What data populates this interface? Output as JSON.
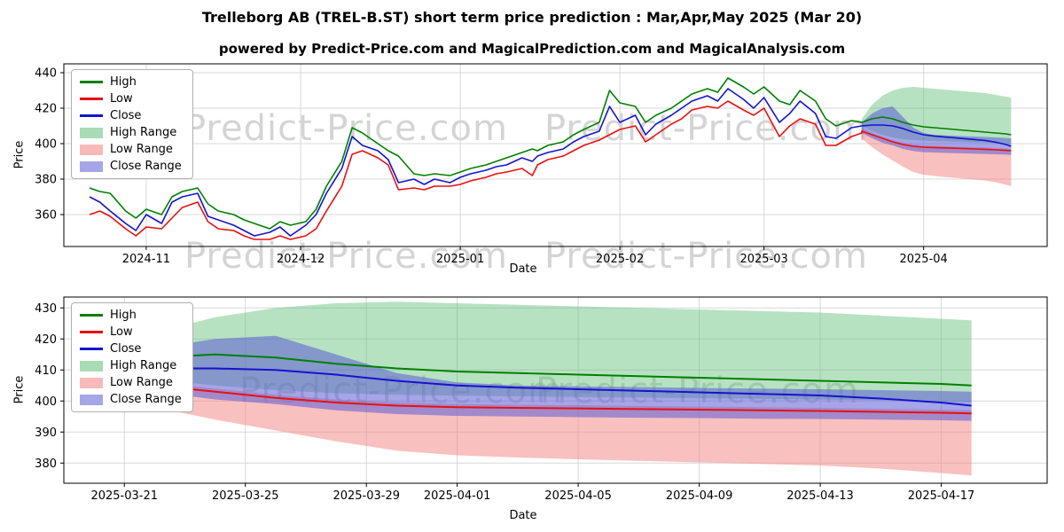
{
  "page": {
    "title": "Trelleborg AB (TREL-B.ST) short term price prediction : Mar,Apr,May 2025 (Mar 20)",
    "subtitle": "powered by Predict-Price.com and MagicalPrediction.com and MagicalAnalysis.com",
    "watermark": "Predict-Price.com"
  },
  "colors": {
    "high": "#008000",
    "low": "#e81010",
    "close": "#1414cc",
    "high_range": "#5fbf77",
    "low_range": "#f2827f",
    "close_range": "#5b5bd6",
    "grid": "#d8d8d8",
    "axis": "#000000"
  },
  "legend": {
    "items": [
      {
        "label": "High",
        "type": "line",
        "color": "high"
      },
      {
        "label": "Low",
        "type": "line",
        "color": "low"
      },
      {
        "label": "Close",
        "type": "line",
        "color": "close"
      },
      {
        "label": "High Range",
        "type": "patch",
        "color": "high_range"
      },
      {
        "label": "Low Range",
        "type": "patch",
        "color": "low_range"
      },
      {
        "label": "Close Range",
        "type": "patch",
        "color": "close_range"
      }
    ]
  },
  "chart_data": [
    {
      "type": "line",
      "name": "history-and-prediction",
      "title": "",
      "xlabel": "Date",
      "ylabel": "Price",
      "ylim": [
        342,
        445
      ],
      "yticks": [
        360,
        380,
        400,
        420,
        440
      ],
      "xlim": [
        -5,
        186
      ],
      "xticks": [
        {
          "pos": 11,
          "label": "2024-11"
        },
        {
          "pos": 41,
          "label": "2024-12"
        },
        {
          "pos": 72,
          "label": "2025-01"
        },
        {
          "pos": 103,
          "label": "2025-02"
        },
        {
          "pos": 131,
          "label": "2025-03"
        },
        {
          "pos": 162,
          "label": "2025-04"
        }
      ],
      "all_x": [
        0,
        2,
        4,
        7,
        9,
        11,
        14,
        16,
        18,
        21,
        23,
        25,
        28,
        30,
        32,
        35,
        37,
        39,
        42,
        44,
        46,
        49,
        51,
        53,
        56,
        58,
        60,
        63,
        65,
        67,
        70,
        72,
        74,
        77,
        79,
        81,
        84,
        86,
        87,
        89,
        92,
        94,
        96,
        99,
        101,
        103,
        106,
        108,
        110,
        113,
        115,
        117,
        120,
        122,
        124,
        127,
        129,
        131,
        134,
        136,
        138,
        141,
        143,
        145,
        148,
        150,
        150,
        152,
        154,
        156,
        158,
        160,
        162,
        164,
        166,
        168,
        170,
        172,
        174,
        176,
        178,
        179
      ],
      "fc_x": [
        150,
        152,
        154,
        156,
        158,
        160,
        162,
        164,
        166,
        168,
        170,
        172,
        174,
        176,
        178,
        179
      ],
      "bands": [
        {
          "name": "High Range",
          "color": "high_range",
          "opacity": 0.45,
          "x": "fc_x",
          "upper": [
            414,
            422,
            427,
            430,
            431.5,
            432,
            431.5,
            431,
            430.5,
            430,
            429.5,
            429,
            428.5,
            427.5,
            426.5,
            426
          ],
          "lower": [
            410,
            407,
            405,
            403.5,
            402.5,
            402,
            401.7,
            401.5,
            401.3,
            401.1,
            400.9,
            400.7,
            400.5,
            400.2,
            399.8,
            399.5
          ]
        },
        {
          "name": "Low Range",
          "color": "low_range",
          "opacity": 0.5,
          "x": "fc_x",
          "upper": [
            409,
            406,
            404,
            402,
            400.5,
            399.5,
            399,
            398.8,
            398.6,
            398.4,
            398.2,
            398,
            397.8,
            397.5,
            397.2,
            397
          ],
          "lower": [
            403,
            398,
            394,
            390.5,
            387,
            384,
            382.5,
            381.8,
            381.2,
            380.7,
            380.2,
            379.7,
            379.2,
            378.2,
            376.8,
            376
          ]
        },
        {
          "name": "Close Range",
          "color": "close_range",
          "opacity": 0.55,
          "x": "fc_x",
          "upper": [
            412,
            417,
            420,
            421,
            415,
            409,
            406,
            405,
            404.7,
            404.5,
            404.2,
            404,
            403.8,
            403.5,
            403.2,
            403
          ],
          "lower": [
            406,
            403,
            400.5,
            399,
            397,
            395.8,
            395.2,
            395,
            394.8,
            394.6,
            394.5,
            394.3,
            394.2,
            394,
            393.8,
            393.6
          ]
        }
      ],
      "lines": [
        {
          "name": "High",
          "color": "high",
          "lw": 1.6,
          "x": "all_x",
          "y": [
            375,
            373,
            372,
            362,
            358,
            363,
            360,
            370,
            373,
            375,
            366,
            362,
            360,
            357,
            355,
            352,
            356,
            354,
            356,
            363,
            376,
            390,
            409,
            406,
            400,
            396,
            393,
            383,
            382,
            383,
            382,
            384,
            386,
            388,
            390,
            392,
            395,
            397,
            396,
            399,
            401,
            405,
            408,
            412,
            430,
            423,
            421,
            412,
            416,
            420,
            424,
            428,
            431,
            429,
            437,
            432,
            428,
            432,
            424,
            422,
            430,
            424,
            414,
            410,
            413,
            412,
            412,
            414,
            415,
            414,
            412,
            410.5,
            409.5,
            409,
            408.5,
            408,
            407.5,
            407,
            406.5,
            406,
            405.5,
            405
          ]
        },
        {
          "name": "Low",
          "color": "low",
          "lw": 1.6,
          "x": "all_x",
          "y": [
            360,
            362,
            359,
            352,
            348,
            353,
            352,
            358,
            364,
            367,
            356,
            352,
            351,
            348,
            346,
            346,
            348,
            346,
            348,
            352,
            362,
            376,
            394,
            396,
            392,
            388,
            374,
            375,
            374,
            376,
            376,
            377,
            379,
            381,
            383,
            384,
            386,
            382,
            388,
            391,
            393,
            396,
            399,
            402,
            405,
            408,
            410,
            401,
            405,
            411,
            414,
            419,
            421,
            420,
            424,
            419,
            416,
            420,
            404,
            410,
            414,
            411,
            399,
            399,
            404,
            406,
            407,
            405,
            403,
            401,
            399.5,
            398.5,
            398,
            397.8,
            397.6,
            397.4,
            397.2,
            397,
            396.8,
            396.5,
            396.2,
            396
          ]
        },
        {
          "name": "Close",
          "color": "close",
          "lw": 1.6,
          "x": "all_x",
          "y": [
            370,
            367,
            362,
            355,
            351,
            360,
            355,
            367,
            370,
            372,
            359,
            357,
            354,
            351,
            348,
            350,
            353,
            348,
            354,
            360,
            372,
            386,
            404,
            399,
            396,
            391,
            378,
            380,
            377,
            380,
            378,
            381,
            383,
            385,
            387,
            388,
            392,
            390,
            393,
            395,
            397,
            401,
            404,
            407,
            421,
            412,
            416,
            405,
            411,
            416,
            420,
            424,
            427,
            424,
            431,
            425,
            420,
            426,
            412,
            417,
            424,
            417,
            404,
            403,
            409,
            410,
            410,
            410.5,
            410.5,
            410,
            408.5,
            406.5,
            405,
            404.3,
            403.8,
            403.3,
            402.8,
            402.3,
            401.8,
            400.8,
            399.5,
            398.5
          ]
        }
      ]
    },
    {
      "type": "line",
      "name": "prediction-detail",
      "title": "",
      "xlabel": "Date",
      "ylabel": "Price",
      "ylim": [
        373.5,
        433.5
      ],
      "yticks": [
        380,
        390,
        400,
        410,
        420,
        430
      ],
      "xlim": [
        -1,
        31.5
      ],
      "xticks": [
        {
          "pos": 1,
          "label": "2025-03-21"
        },
        {
          "pos": 5,
          "label": "2025-03-25"
        },
        {
          "pos": 9,
          "label": "2025-03-29"
        },
        {
          "pos": 12,
          "label": "2025-04-01"
        },
        {
          "pos": 16,
          "label": "2025-04-05"
        },
        {
          "pos": 20,
          "label": "2025-04-09"
        },
        {
          "pos": 24,
          "label": "2025-04-13"
        },
        {
          "pos": 28,
          "label": "2025-04-17"
        }
      ],
      "fc_x": [
        0,
        2,
        4,
        6,
        8,
        10,
        12,
        14,
        16,
        18,
        20,
        22,
        24,
        26,
        28,
        29
      ],
      "bands": [
        {
          "name": "High Range",
          "color": "high_range",
          "opacity": 0.45,
          "x": "fc_x",
          "upper": [
            414,
            422,
            427,
            430,
            431.5,
            432,
            431.5,
            431,
            430.5,
            430,
            429.5,
            429,
            428.5,
            427.5,
            426.5,
            426
          ],
          "lower": [
            410,
            407,
            405,
            403.5,
            402.5,
            402,
            401.7,
            401.5,
            401.3,
            401.1,
            400.9,
            400.7,
            400.5,
            400.2,
            399.8,
            399.5
          ]
        },
        {
          "name": "Low Range",
          "color": "low_range",
          "opacity": 0.5,
          "x": "fc_x",
          "upper": [
            409,
            406,
            404,
            402,
            400.5,
            399.5,
            399,
            398.8,
            398.6,
            398.4,
            398.2,
            398,
            397.8,
            397.5,
            397.2,
            397
          ],
          "lower": [
            403,
            398,
            394,
            390.5,
            387,
            384,
            382.5,
            381.8,
            381.2,
            380.7,
            380.2,
            379.7,
            379.2,
            378.2,
            376.8,
            376
          ]
        },
        {
          "name": "Close Range",
          "color": "close_range",
          "opacity": 0.55,
          "x": "fc_x",
          "upper": [
            412,
            417,
            420,
            421,
            415,
            409,
            406,
            405,
            404.7,
            404.5,
            404.2,
            404,
            403.8,
            403.5,
            403.2,
            403
          ],
          "lower": [
            406,
            403,
            400.5,
            399,
            397,
            395.8,
            395.2,
            395,
            394.8,
            394.6,
            394.5,
            394.3,
            394.2,
            394,
            393.8,
            393.6
          ]
        }
      ],
      "lines": [
        {
          "name": "High",
          "color": "high",
          "lw": 2,
          "x": "fc_x",
          "y": [
            412,
            414,
            415,
            414,
            412,
            410.5,
            409.5,
            409,
            408.5,
            408,
            407.5,
            407,
            406.5,
            406,
            405.5,
            405
          ]
        },
        {
          "name": "Low",
          "color": "low",
          "lw": 2,
          "x": "fc_x",
          "y": [
            407,
            405,
            403,
            401,
            399.5,
            398.5,
            398,
            397.8,
            397.6,
            397.4,
            397.2,
            397,
            396.8,
            396.5,
            396.2,
            396
          ]
        },
        {
          "name": "Close",
          "color": "close",
          "lw": 2,
          "x": "fc_x",
          "y": [
            410,
            410.5,
            410.5,
            410,
            408.5,
            406.5,
            405,
            404.3,
            403.8,
            403.3,
            402.8,
            402.3,
            401.8,
            400.8,
            399.5,
            398.5
          ]
        }
      ]
    }
  ]
}
